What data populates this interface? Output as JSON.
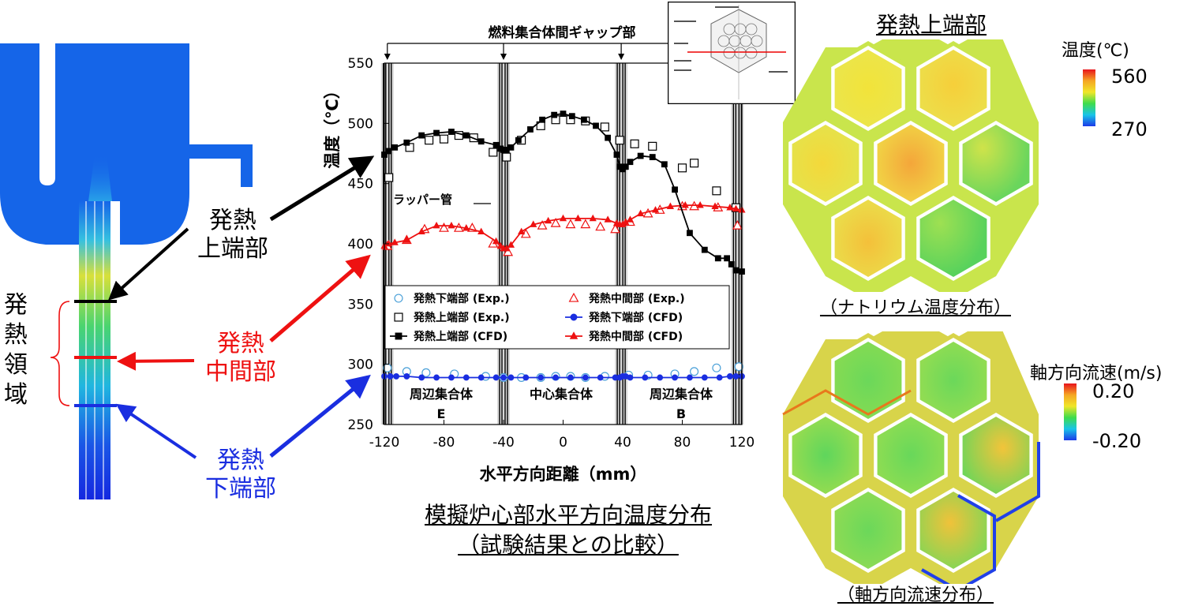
{
  "left_panel": {
    "labels": {
      "upper": [
        "発熱",
        "上端部"
      ],
      "middle": [
        "発熱",
        "中間部"
      ],
      "lower": [
        "発熱",
        "下端部"
      ],
      "region": [
        "発",
        "熱",
        "領",
        "域"
      ]
    },
    "colors": {
      "upper": "#000000",
      "middle": "#ee1111",
      "lower": "#1a2ee0"
    }
  },
  "center_panel": {
    "caption": [
      "模擬炉心部水平方向温度分布",
      "（試験結果との比較）"
    ],
    "gap_label": "燃料集合体間ギャップ部",
    "wrapper_label": "ラッパー管",
    "assembly_labels": [
      {
        "text": "周辺集合体",
        "sub": "E"
      },
      {
        "text": "中心集合体",
        "sub": ""
      },
      {
        "text": "周辺集合体",
        "sub": "B"
      }
    ]
  },
  "chart_data": {
    "type": "line",
    "xlabel": "水平方向距離（mm）",
    "ylabel": "温度（℃）",
    "xlim": [
      -120,
      120
    ],
    "ylim": [
      250,
      550
    ],
    "xticks": [
      -120,
      -80,
      -40,
      0,
      40,
      80,
      120
    ],
    "yticks": [
      250,
      300,
      350,
      400,
      450,
      500,
      550
    ],
    "legend_position": "lower-left",
    "series": [
      {
        "name": "発熱下端部 (Exp.)",
        "kind": "exp",
        "marker": "circle",
        "color": "#4aa0d8",
        "x": [
          -118,
          -105,
          -92,
          -73,
          -52,
          -40,
          -28,
          -15,
          -5,
          5,
          15,
          28,
          44,
          57,
          75,
          88,
          103,
          118
        ],
        "y": [
          297,
          294,
          293,
          292,
          290,
          289,
          289,
          289,
          290,
          290,
          289,
          290,
          291,
          291,
          292,
          294,
          297,
          298
        ]
      },
      {
        "name": "発熱上端部 (Exp.)",
        "kind": "exp",
        "marker": "square",
        "color": "#000000",
        "x": [
          -117,
          -103,
          -90,
          -80,
          -70,
          -60,
          -47,
          -38,
          -28,
          -15,
          -5,
          5,
          15,
          28,
          38,
          48,
          60,
          80,
          88,
          103,
          116
        ],
        "y": [
          455,
          480,
          486,
          487,
          490,
          488,
          476,
          472,
          486,
          498,
          503,
          503,
          502,
          497,
          486,
          483,
          481,
          463,
          467,
          444,
          430
        ]
      },
      {
        "name": "発熱中間部 (Exp.)",
        "kind": "exp",
        "marker": "triangle",
        "color": "#ee1111",
        "x": [
          -118,
          -105,
          -93,
          -80,
          -70,
          -61,
          -47,
          -37,
          -25,
          -14,
          -5,
          5,
          15,
          25,
          35,
          45,
          57,
          65,
          80,
          88,
          104,
          117
        ],
        "y": [
          398,
          403,
          412,
          413,
          413,
          413,
          400,
          393,
          408,
          415,
          417,
          416,
          416,
          414,
          412,
          418,
          425,
          428,
          431,
          431,
          430,
          415
        ]
      },
      {
        "name": "発熱下端部 (CFD)",
        "kind": "cfd",
        "marker": "circle",
        "color": "#1a2ee0",
        "x": [
          -120,
          -116,
          -112,
          -105,
          -95,
          -85,
          -75,
          -65,
          -55,
          -45,
          -40,
          -35,
          -25,
          -15,
          -5,
          5,
          15,
          25,
          35,
          38,
          40,
          42,
          45,
          55,
          65,
          75,
          85,
          95,
          105,
          112,
          116,
          120
        ],
        "y": [
          290,
          290,
          290,
          290,
          289,
          289,
          289,
          289,
          289,
          289,
          289,
          289,
          289,
          289,
          289,
          289,
          289,
          289,
          289,
          289,
          290,
          290,
          289,
          289,
          289,
          289,
          289,
          289,
          289,
          290,
          290,
          290
        ]
      },
      {
        "name": "発熱中間部 (CFD)",
        "kind": "cfd",
        "marker": "triangle",
        "color": "#ee1111",
        "x": [
          -120,
          -117,
          -113,
          -105,
          -95,
          -85,
          -75,
          -65,
          -55,
          -45,
          -42,
          -40,
          -38,
          -35,
          -28,
          -20,
          -10,
          0,
          10,
          20,
          30,
          36,
          38,
          40,
          42,
          45,
          52,
          62,
          72,
          82,
          92,
          102,
          112,
          116,
          120
        ],
        "y": [
          398,
          400,
          401,
          403,
          410,
          415,
          415,
          413,
          410,
          402,
          398,
          396,
          396,
          399,
          410,
          416,
          419,
          421,
          421,
          421,
          420,
          417,
          416,
          416,
          418,
          420,
          425,
          428,
          431,
          432,
          432,
          431,
          430,
          429,
          428
        ]
      },
      {
        "name": "発熱上端部 (CFD)",
        "kind": "cfd",
        "marker": "square",
        "color": "#000000",
        "x": [
          -120,
          -117,
          -113,
          -105,
          -95,
          -85,
          -75,
          -65,
          -55,
          -45,
          -42,
          -40,
          -38,
          -35,
          -30,
          -22,
          -14,
          -6,
          0,
          6,
          14,
          22,
          30,
          36,
          38,
          40,
          42,
          45,
          52,
          60,
          68,
          75,
          85,
          95,
          104,
          110,
          113,
          116,
          120
        ],
        "y": [
          474,
          477,
          480,
          484,
          490,
          492,
          493,
          490,
          485,
          482,
          479,
          478,
          478,
          480,
          486,
          495,
          503,
          507,
          508,
          506,
          503,
          498,
          488,
          474,
          464,
          462,
          464,
          468,
          473,
          472,
          466,
          445,
          409,
          395,
          388,
          388,
          383,
          378,
          377
        ]
      }
    ]
  },
  "temp_panel": {
    "title": "発熱上端部",
    "caption": "（ナトリウム温度分布）",
    "colorbar_title": "温度(℃)",
    "colorbar_max": "560",
    "colorbar_min": "270"
  },
  "flow_panel": {
    "caption": "（軸方向流速分布）",
    "colorbar_title": "軸方向流速(m/s)",
    "colorbar_max": "0.20",
    "colorbar_min": "-0.20"
  }
}
